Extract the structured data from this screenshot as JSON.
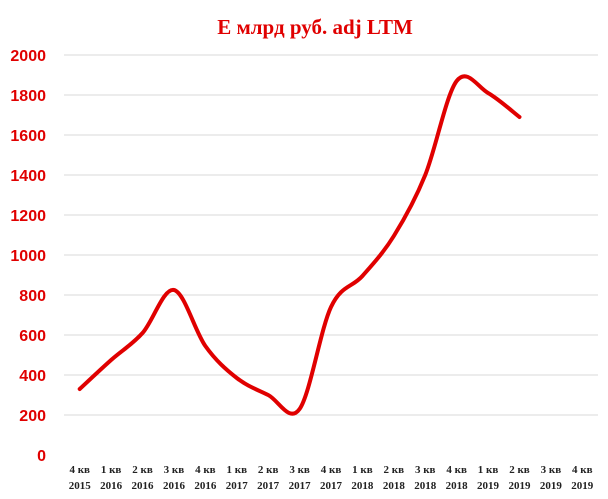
{
  "chart_data": {
    "type": "line",
    "title": "E млрд руб. adj LTM",
    "xlabel": "",
    "ylabel": "",
    "ylim": [
      0,
      2000
    ],
    "yticks": [
      "0",
      "200",
      "400",
      "600",
      "800",
      "1000",
      "1200",
      "1400",
      "1600",
      "1800",
      "2000"
    ],
    "grid": true,
    "legend": "none",
    "categories": [
      {
        "q": "4 кв",
        "y": "2015"
      },
      {
        "q": "1 кв",
        "y": "2016"
      },
      {
        "q": "2 кв",
        "y": "2016"
      },
      {
        "q": "3 кв",
        "y": "2016"
      },
      {
        "q": "4 кв",
        "y": "2016"
      },
      {
        "q": "1 кв",
        "y": "2017"
      },
      {
        "q": "2 кв",
        "y": "2017"
      },
      {
        "q": "3 кв",
        "y": "2017"
      },
      {
        "q": "4 кв",
        "y": "2017"
      },
      {
        "q": "1 кв",
        "y": "2018"
      },
      {
        "q": "2 кв",
        "y": "2018"
      },
      {
        "q": "3 кв",
        "y": "2018"
      },
      {
        "q": "4 кв",
        "y": "2018"
      },
      {
        "q": "1 кв",
        "y": "2019"
      },
      {
        "q": "2 кв",
        "y": "2019"
      },
      {
        "q": "3 кв",
        "y": "2019"
      },
      {
        "q": "4 кв",
        "y": "2019"
      }
    ],
    "series": [
      {
        "values": [
          330,
          475,
          610,
          825,
          545,
          385,
          300,
          230,
          740,
          895,
          1095,
          1400,
          1870,
          1810,
          1690,
          null,
          null
        ]
      }
    ],
    "colors": {
      "line": "#e00000",
      "title": "#e00000",
      "yticks": "#e00000",
      "grid": "#d9d9d9"
    }
  }
}
